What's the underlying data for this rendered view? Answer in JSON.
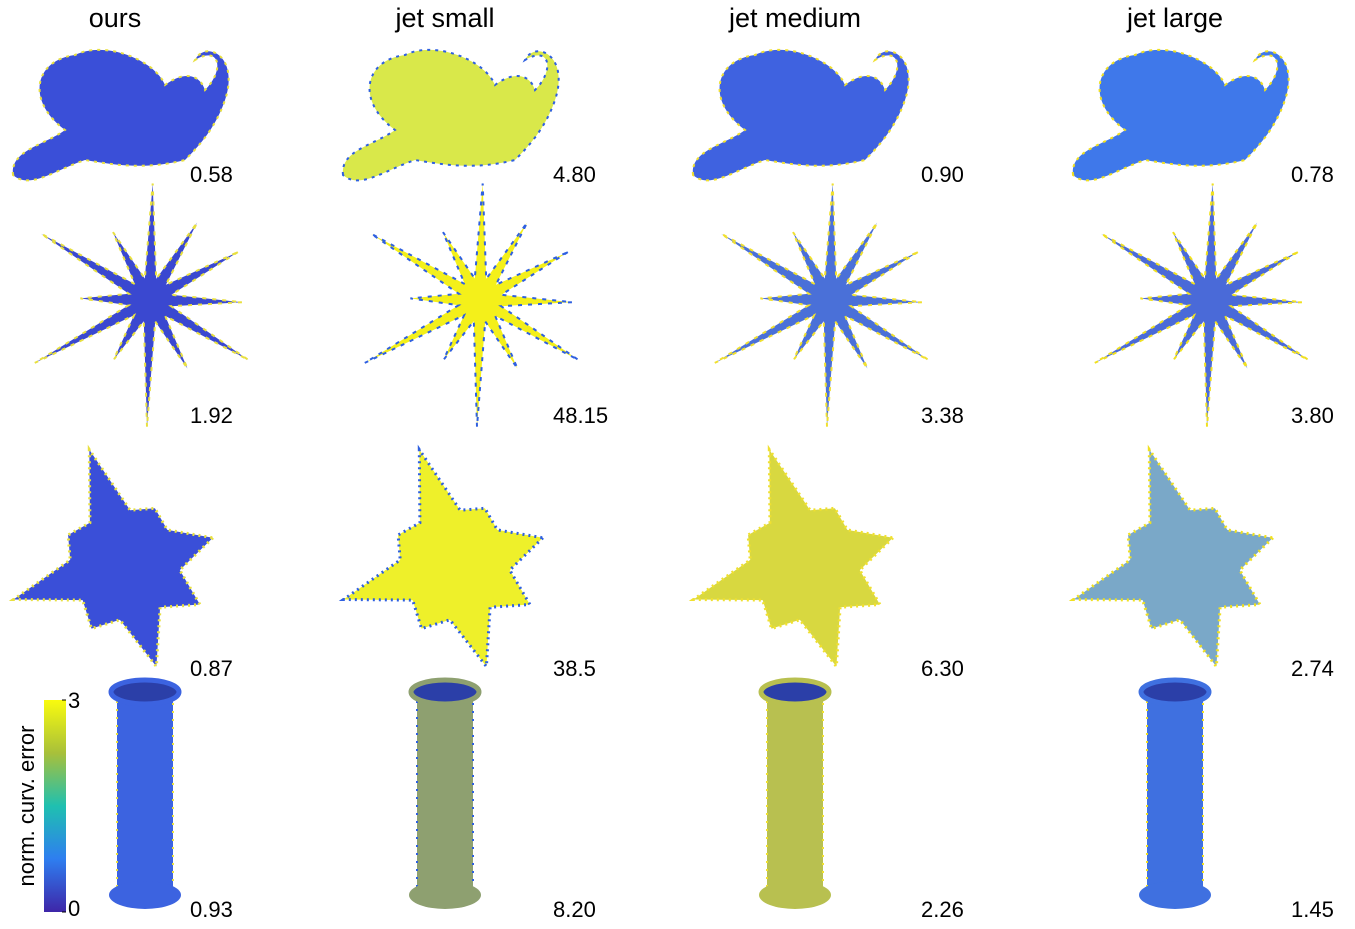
{
  "columns": [
    "ours",
    "jet small",
    "jet medium",
    "jet large"
  ],
  "rows": [
    [
      "0.58",
      "4.80",
      "0.90",
      "0.78"
    ],
    [
      "1.92",
      "48.15",
      "3.38",
      "3.80"
    ],
    [
      "0.87",
      "38.5",
      "6.30",
      "2.74"
    ],
    [
      "0.93",
      "8.20",
      "2.26",
      "1.45"
    ]
  ],
  "colorbar": {
    "label": "norm. curv. error",
    "ticks": [
      0,
      3
    ]
  }
}
